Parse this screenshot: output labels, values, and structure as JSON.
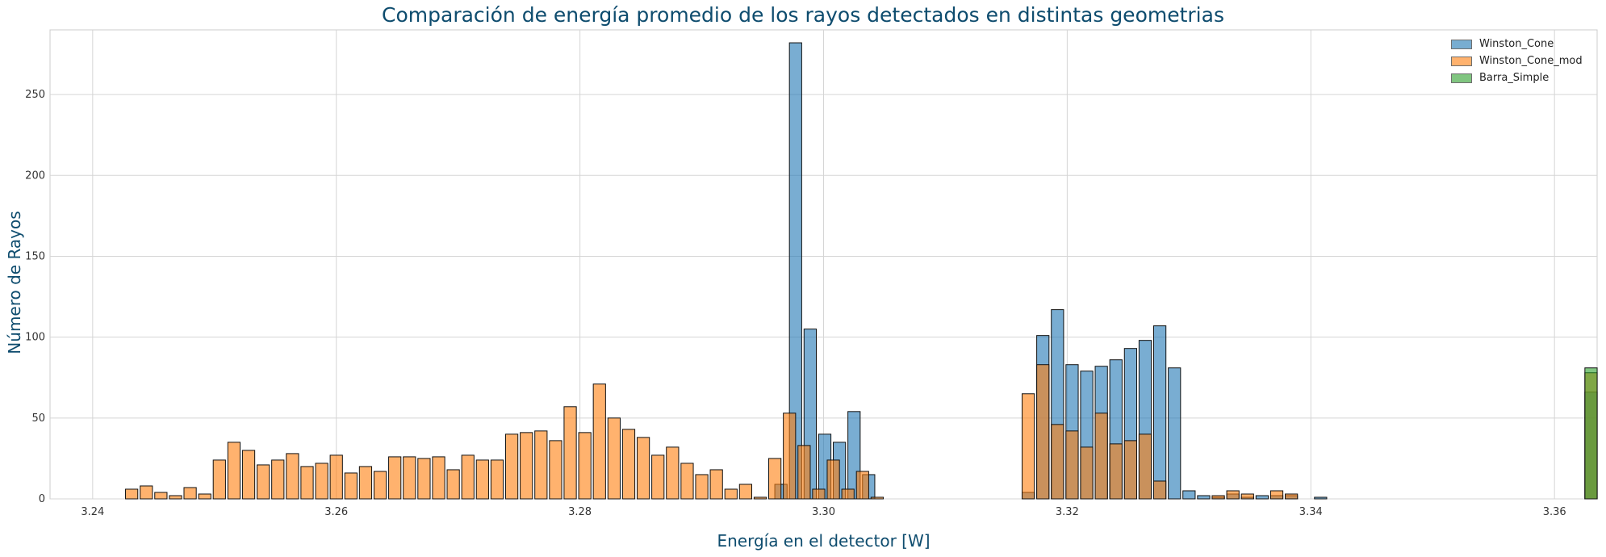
{
  "chart_data": {
    "type": "bar",
    "title": "Comparación de energía promedio de los rayos detectados en distintas geometrias",
    "xlabel": "Energía en el detector [W]",
    "ylabel": "Número de Rayos",
    "xlim": [
      3.2365,
      3.3635
    ],
    "ylim": [
      0,
      290
    ],
    "x_ticks": [
      3.24,
      3.26,
      3.28,
      3.3,
      3.32,
      3.34,
      3.36
    ],
    "x_tick_labels": [
      "3.24",
      "3.26",
      "3.28",
      "3.30",
      "3.32",
      "3.34",
      "3.36"
    ],
    "y_ticks": [
      0,
      50,
      100,
      150,
      200,
      250
    ],
    "bin_width": 0.0012,
    "grid": true,
    "legend_position": "top-right",
    "series": [
      {
        "name": "Winston_Cone",
        "color": "#1f77b4",
        "x": [
          3.2965,
          3.2977,
          3.2989,
          3.3001,
          3.3013,
          3.3025,
          3.3037,
          3.3168,
          3.318,
          3.3192,
          3.3204,
          3.3216,
          3.3228,
          3.324,
          3.3252,
          3.3264,
          3.3276,
          3.3288,
          3.33,
          3.3312,
          3.3324,
          3.3336,
          3.3348,
          3.336,
          3.3372,
          3.3384,
          3.3408,
          3.363
        ],
        "values": [
          9,
          282,
          105,
          40,
          35,
          54,
          15,
          4,
          101,
          117,
          83,
          79,
          82,
          86,
          93,
          98,
          107,
          81,
          5,
          2,
          1,
          3,
          1,
          2,
          2,
          2,
          1,
          66
        ]
      },
      {
        "name": "Winston_Cone_mod",
        "color": "#ff7f0e",
        "x": [
          3.2432,
          3.2444,
          3.2456,
          3.2468,
          3.248,
          3.2492,
          3.2504,
          3.2516,
          3.2528,
          3.254,
          3.2552,
          3.2564,
          3.2576,
          3.2588,
          3.26,
          3.2612,
          3.2624,
          3.2636,
          3.2648,
          3.266,
          3.2672,
          3.2684,
          3.2696,
          3.2708,
          3.272,
          3.2732,
          3.2744,
          3.2756,
          3.2768,
          3.278,
          3.2792,
          3.2804,
          3.2816,
          3.2828,
          3.284,
          3.2852,
          3.2864,
          3.2876,
          3.2888,
          3.29,
          3.2912,
          3.2924,
          3.2936,
          3.2948,
          3.296,
          3.2972,
          3.2984,
          3.2996,
          3.3008,
          3.302,
          3.3032,
          3.3044,
          3.3168,
          3.318,
          3.3192,
          3.3204,
          3.3216,
          3.3228,
          3.324,
          3.3252,
          3.3264,
          3.3276,
          3.3324,
          3.3336,
          3.3348,
          3.3372,
          3.3384,
          3.363
        ],
        "values": [
          6,
          8,
          4,
          2,
          7,
          3,
          24,
          35,
          30,
          21,
          24,
          28,
          20,
          22,
          27,
          16,
          20,
          17,
          26,
          26,
          25,
          26,
          18,
          27,
          24,
          24,
          40,
          41,
          42,
          36,
          57,
          41,
          71,
          50,
          43,
          38,
          27,
          32,
          22,
          15,
          18,
          6,
          9,
          1,
          25,
          53,
          33,
          6,
          24,
          6,
          17,
          1,
          65,
          83,
          46,
          42,
          32,
          53,
          34,
          36,
          40,
          11,
          2,
          5,
          3,
          5,
          3,
          78
        ]
      },
      {
        "name": "Barra_Simple",
        "color": "#2ca02c",
        "x": [
          3.363
        ],
        "values": [
          81
        ]
      }
    ]
  }
}
